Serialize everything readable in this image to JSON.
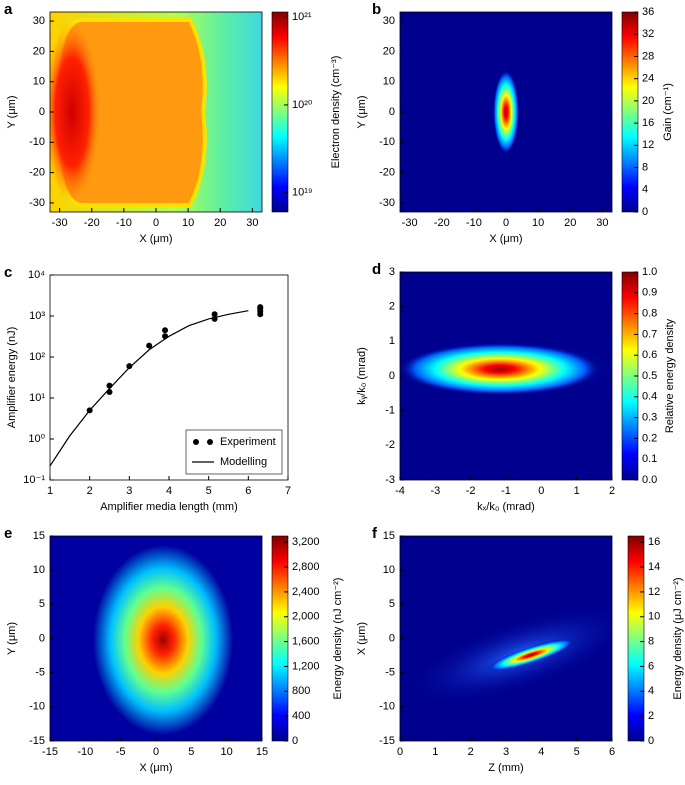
{
  "chart_data": [
    {
      "type": "heatmap",
      "panel_label": "a",
      "xlabel": "X (μm)",
      "ylabel": "Y (μm)",
      "xlim": [
        -33,
        33
      ],
      "xticks": [
        -30,
        -20,
        -10,
        0,
        10,
        20,
        30
      ],
      "ylim": [
        -33,
        33
      ],
      "yticks": [
        -30,
        -20,
        -10,
        0,
        10,
        20,
        30
      ],
      "colorbar": {
        "label": "Electron density (cm⁻³)",
        "log": true,
        "clim": [
          6e+18,
          1.15e+21
        ],
        "ticks": [
          {
            "value": 1e+19,
            "label": "10¹⁹"
          },
          {
            "value": 1e+20,
            "label": "10²⁰"
          },
          {
            "value": 1e+21,
            "label": "10²¹"
          }
        ]
      }
    },
    {
      "type": "heatmap",
      "panel_label": "b",
      "xlabel": "X (μm)",
      "ylabel": "Y (μm)",
      "xlim": [
        -33,
        33
      ],
      "xticks": [
        -30,
        -20,
        -10,
        0,
        10,
        20,
        30
      ],
      "ylim": [
        -33,
        33
      ],
      "yticks": [
        -30,
        -20,
        -10,
        0,
        10,
        20,
        30
      ],
      "colorbar": {
        "label": "Gain (cm⁻¹)",
        "log": false,
        "clim": [
          0,
          36
        ],
        "ticks": [
          0,
          4,
          8,
          12,
          16,
          20,
          24,
          28,
          32,
          36
        ]
      }
    },
    {
      "type": "line",
      "panel_label": "c",
      "xlabel": "Amplifier media length (mm)",
      "ylabel": "Amplifier energy (nJ)",
      "xlim": [
        1,
        7
      ],
      "xticks": [
        1,
        2,
        3,
        4,
        5,
        6,
        7
      ],
      "ylog": true,
      "ylim": [
        0.1,
        10000
      ],
      "yticks": [
        {
          "value": 0.1,
          "label": "10⁻¹"
        },
        {
          "value": 1,
          "label": "10⁰"
        },
        {
          "value": 10,
          "label": "10¹"
        },
        {
          "value": 100,
          "label": "10²"
        },
        {
          "value": 1000,
          "label": "10³"
        },
        {
          "value": 10000,
          "label": "10⁴"
        }
      ],
      "legend": "lower right",
      "series": [
        {
          "name": "Experiment",
          "style": "scatter",
          "color": "#000000",
          "x": [
            2,
            2.5,
            2.5,
            3,
            3.5,
            3.9,
            3.9,
            5.15,
            5.15,
            6.3,
            6.3,
            6.3,
            6.3
          ],
          "values": [
            5,
            14,
            20,
            60,
            190,
            320,
            450,
            850,
            1100,
            1100,
            1300,
            1500,
            1650
          ]
        },
        {
          "name": "Modelling",
          "style": "line",
          "color": "#000000",
          "x": [
            1,
            1.5,
            2,
            2.5,
            3,
            3.5,
            4,
            4.5,
            5,
            5.5,
            6
          ],
          "values": [
            0.22,
            1.2,
            5,
            17,
            55,
            150,
            320,
            580,
            850,
            1100,
            1350
          ]
        }
      ]
    },
    {
      "type": "heatmap",
      "panel_label": "d",
      "xlabel": "kₓ/k₀ (mrad)",
      "ylabel": "kᵧ/k₀ (mrad)",
      "xlim": [
        -4,
        2
      ],
      "xticks": [
        -4,
        -3,
        -2,
        -1,
        0,
        1,
        2
      ],
      "ylim": [
        -3,
        3
      ],
      "yticks": [
        -3,
        -2,
        -1,
        0,
        1,
        2,
        3
      ],
      "colorbar": {
        "label": "Relative energy density",
        "log": false,
        "clim": [
          0,
          1
        ],
        "ticks": [
          {
            "value": 0,
            "label": "0.0"
          },
          0.1,
          0.2,
          0.3,
          0.4,
          0.5,
          0.6,
          0.7,
          0.8,
          0.9,
          {
            "value": 1,
            "label": "1.0"
          }
        ]
      }
    },
    {
      "type": "heatmap",
      "panel_label": "e",
      "xlabel": "X (μm)",
      "ylabel": "Y (μm)",
      "xlim": [
        -15,
        15
      ],
      "xticks": [
        -15,
        -10,
        -5,
        0,
        5,
        10,
        15
      ],
      "ylim": [
        -15,
        15
      ],
      "yticks": [
        -15,
        -10,
        -5,
        0,
        5,
        10,
        15
      ],
      "colorbar": {
        "label": "Energy density (nJ cm⁻²)",
        "log": false,
        "clim": [
          0,
          3300
        ],
        "ticks": [
          0,
          400,
          800,
          {
            "value": 1200,
            "label": "1,200"
          },
          {
            "value": 1600,
            "label": "1,600"
          },
          {
            "value": 2000,
            "label": "2,000"
          },
          {
            "value": 2400,
            "label": "2,400"
          },
          {
            "value": 2800,
            "label": "2,800"
          },
          {
            "value": 3200,
            "label": "3,200"
          }
        ]
      }
    },
    {
      "type": "heatmap",
      "panel_label": "f",
      "xlabel": "Z (mm)",
      "ylabel": "X (μm)",
      "xlim": [
        0,
        6
      ],
      "xticks": [
        0,
        1,
        2,
        3,
        4,
        5,
        6
      ],
      "ylim": [
        -15,
        15
      ],
      "yticks": [
        -15,
        -10,
        -5,
        0,
        5,
        10,
        15
      ],
      "colorbar": {
        "label": "Energy density (μJ cm⁻²)",
        "log": false,
        "clim": [
          0,
          16.5
        ],
        "ticks": [
          0,
          2,
          4,
          6,
          8,
          10,
          12,
          14,
          16
        ]
      }
    }
  ]
}
